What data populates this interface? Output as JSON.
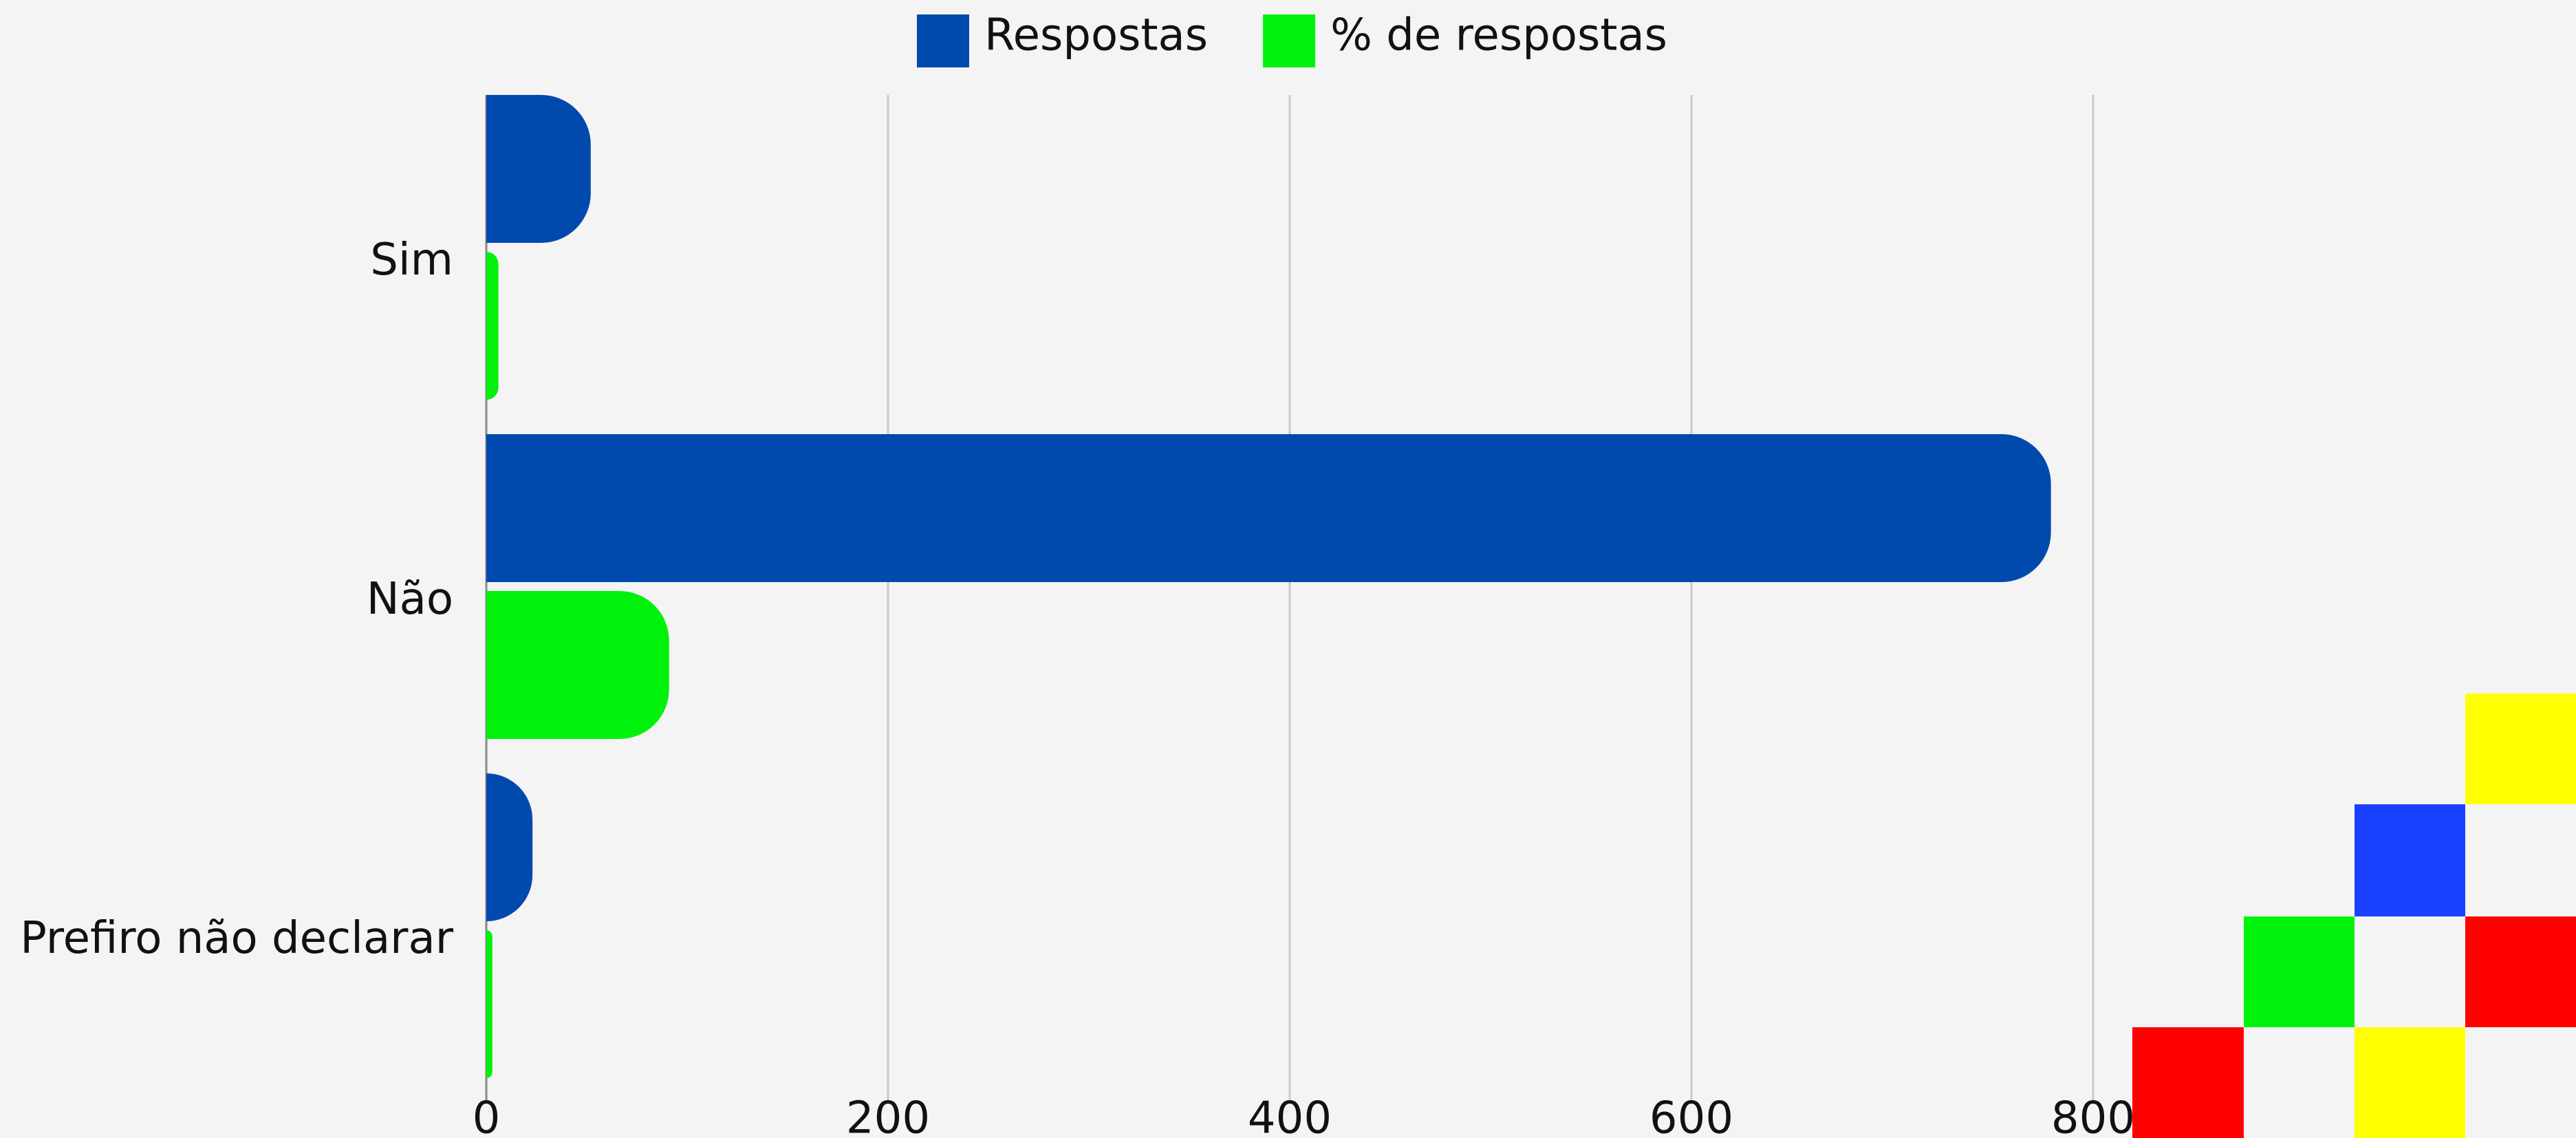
{
  "chart_data": {
    "type": "bar",
    "orientation": "horizontal",
    "categories": [
      "Sim",
      "Não",
      "Prefiro não declarar"
    ],
    "series": [
      {
        "name": "Respostas",
        "color": "#004aad",
        "values": [
          52,
          779,
          23
        ]
      },
      {
        "name": "% de respostas",
        "color": "#00f20c",
        "values": [
          6,
          91,
          3
        ]
      }
    ],
    "xlim": [
      0,
      800
    ],
    "xticks": [
      0,
      200,
      400,
      600,
      800
    ],
    "grid": true,
    "legend": "top"
  }
}
